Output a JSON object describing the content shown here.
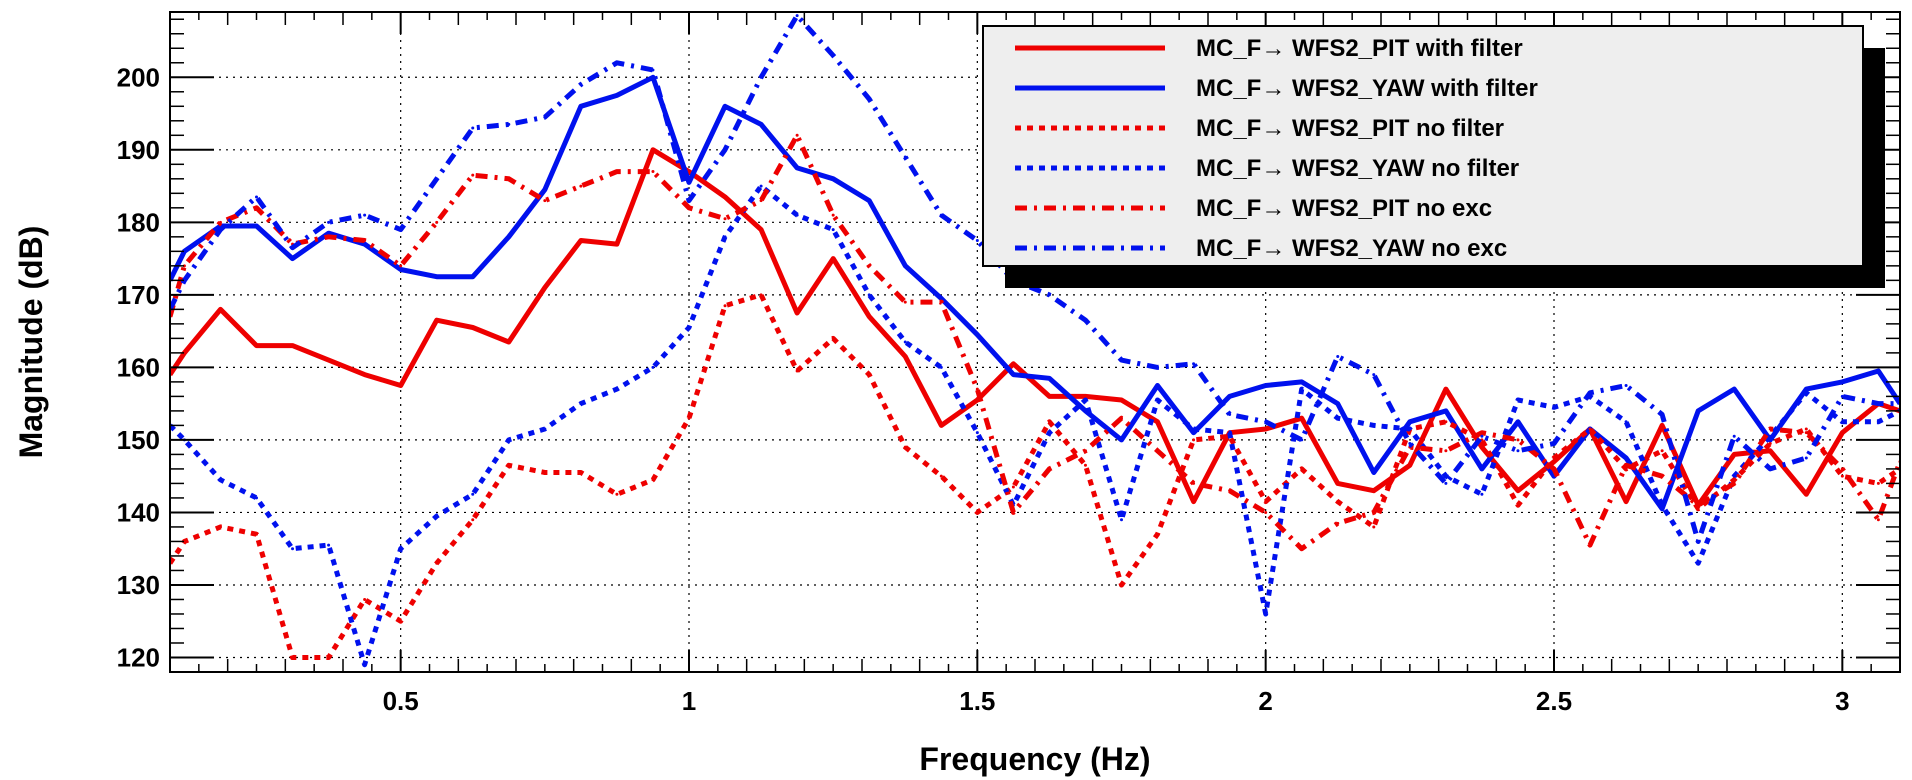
{
  "chart_data": {
    "type": "line",
    "xlabel": "Frequency (Hz)",
    "ylabel": "Magnitude (dB)",
    "xlim": [
      0.1,
      3.1
    ],
    "ylim": [
      118,
      209
    ],
    "grid": true,
    "legend_position": "top-right",
    "x_ticks": [
      0.5,
      1,
      1.5,
      2,
      2.5,
      3
    ],
    "x_tick_labels": [
      "0.5",
      "1",
      "1.5",
      "2",
      "2.5",
      "3"
    ],
    "y_ticks": [
      120,
      130,
      140,
      150,
      160,
      170,
      180,
      190,
      200
    ],
    "y_tick_labels": [
      "120",
      "130",
      "140",
      "150",
      "160",
      "170",
      "180",
      "190",
      "200"
    ],
    "x": [
      0.1,
      0.125,
      0.1875,
      0.25,
      0.3125,
      0.375,
      0.4375,
      0.5,
      0.5625,
      0.625,
      0.6875,
      0.75,
      0.8125,
      0.875,
      0.9375,
      1.0,
      1.0625,
      1.125,
      1.1875,
      1.25,
      1.3125,
      1.375,
      1.4375,
      1.5,
      1.5625,
      1.625,
      1.6875,
      1.75,
      1.8125,
      1.875,
      1.9375,
      2.0,
      2.0625,
      2.125,
      2.1875,
      2.25,
      2.3125,
      2.375,
      2.4375,
      2.5,
      2.5625,
      2.625,
      2.6875,
      2.75,
      2.8125,
      2.875,
      2.9375,
      3.0,
      3.0625,
      3.1
    ],
    "series": [
      {
        "name": "MC_F→ WFS2_PIT with filter",
        "color": "#ee0000",
        "dash": "solid",
        "values": [
          159,
          162,
          168,
          163,
          163,
          161,
          159,
          157.5,
          166.5,
          165.5,
          163.5,
          171,
          177.5,
          177,
          190,
          187,
          183.5,
          179,
          167.5,
          175,
          167,
          161.5,
          152,
          155.5,
          160.5,
          156,
          156,
          155.5,
          152.5,
          141.5,
          151,
          151.5,
          153,
          144,
          143,
          146.5,
          157,
          149,
          143,
          147,
          151.5,
          141.5,
          152,
          141,
          148,
          148.5,
          142.5,
          151,
          155,
          154
        ]
      },
      {
        "name": "MC_F→ WFS2_YAW with filter",
        "color": "#0011ee",
        "dash": "solid",
        "values": [
          172,
          176,
          179.5,
          179.5,
          175,
          178.5,
          177,
          173.5,
          172.5,
          172.5,
          178,
          184.5,
          196,
          197.5,
          200,
          185.5,
          196,
          193.5,
          187.5,
          186,
          183,
          174,
          169.5,
          164.5,
          159,
          158.5,
          154,
          150,
          157.5,
          151,
          156,
          157.5,
          158,
          155,
          145.5,
          152.5,
          154,
          146,
          152.5,
          145,
          151.5,
          147.5,
          140.5,
          154,
          157,
          150,
          157,
          158,
          159.5,
          155
        ]
      },
      {
        "name": "MC_F→ WFS2_PIT no filter",
        "color": "#ee0000",
        "dash": "dot",
        "values": [
          133,
          136,
          138,
          137,
          120,
          120,
          128,
          125,
          133,
          139,
          146.5,
          145.5,
          145.5,
          142.5,
          144.5,
          153,
          168.5,
          170,
          159.5,
          164,
          159,
          149,
          145,
          140,
          143.5,
          152.5,
          146.5,
          130,
          137,
          150,
          150.5,
          141.5,
          146,
          141.5,
          138,
          151.5,
          152.5,
          150,
          141,
          147.5,
          151.5,
          146,
          148.5,
          140.5,
          144.5,
          149.5,
          151.5,
          145,
          144,
          146
        ]
      },
      {
        "name": "MC_F→ WFS2_YAW no filter",
        "color": "#0011ee",
        "dash": "dot",
        "values": [
          152,
          150,
          144.5,
          142,
          135,
          135.5,
          119,
          135,
          139.5,
          142.5,
          150,
          151.5,
          155,
          157,
          160,
          165.5,
          178,
          185,
          181,
          179,
          170,
          163.5,
          160,
          151,
          141,
          151,
          155.5,
          139,
          155.5,
          151.5,
          151,
          126,
          157,
          153,
          152,
          151.5,
          145,
          142.5,
          155.5,
          154.5,
          156,
          152.5,
          141,
          133,
          145,
          150.5,
          156.5,
          152.5,
          152.5,
          154
        ]
      },
      {
        "name": "MC_F→ WFS2_PIT no exc",
        "color": "#ee0000",
        "dash": "dashdot",
        "values": [
          167,
          174,
          180,
          182,
          177,
          178,
          177.5,
          174,
          180,
          186.5,
          186,
          183,
          185,
          187,
          187,
          182,
          180.5,
          183,
          192,
          181,
          174,
          169,
          169,
          157,
          140,
          146,
          148.5,
          153,
          148.5,
          144,
          143,
          140,
          135,
          138.5,
          140,
          149,
          148.5,
          151,
          150,
          146,
          135.5,
          146.5,
          145,
          141,
          144,
          151.5,
          151,
          146,
          139,
          147
        ]
      },
      {
        "name": "MC_F→ WFS2_YAW no exc",
        "color": "#0011ee",
        "dash": "dashdot",
        "values": [
          168,
          172,
          179,
          183.5,
          176.5,
          180,
          181,
          179,
          186,
          193,
          193.5,
          194.5,
          199,
          202,
          201,
          183,
          190,
          200,
          208.5,
          203,
          197,
          189,
          181,
          177.5,
          172,
          170,
          166.5,
          161,
          160,
          160.5,
          153.5,
          152.5,
          150,
          161.5,
          159,
          149.5,
          144,
          150.5,
          148.5,
          149.5,
          156.5,
          157.5,
          153.5,
          136,
          150.5,
          146,
          147.5,
          156,
          155,
          155
        ]
      }
    ]
  }
}
